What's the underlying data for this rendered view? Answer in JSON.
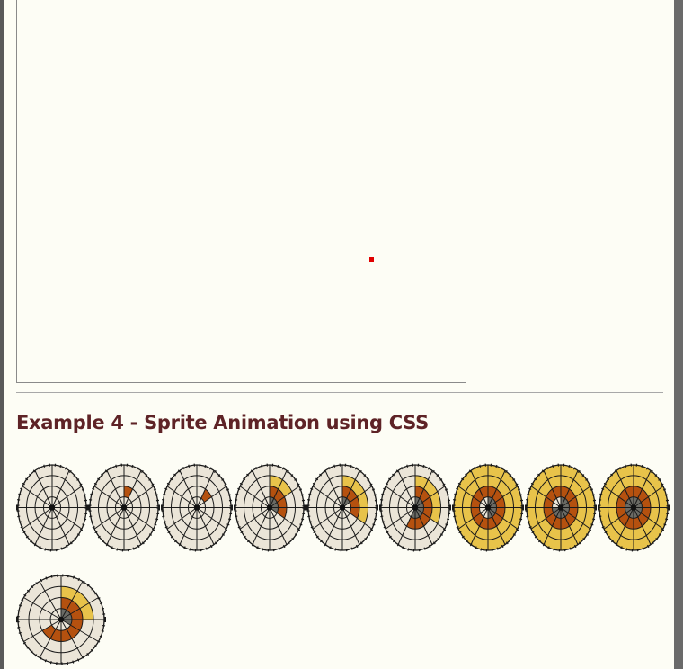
{
  "section": {
    "heading": "Example 4 - Sprite Animation using CSS"
  },
  "colors": {
    "page_background": "#fdfdf5",
    "heading": "#5e2326",
    "dot": "#e00000",
    "disc_base": "#ebe5d8",
    "fill_yellow": "#e8c34a",
    "fill_orange": "#b5510f",
    "fill_gray": "#6b6b65"
  },
  "sprite_frames": [
    {
      "ring_fill": [
        [],
        [],
        [],
        []
      ]
    },
    {
      "ring_fill": [
        [],
        [],
        [
          0
        ],
        []
      ]
    },
    {
      "ring_fill": [
        [],
        [],
        [
          1
        ],
        []
      ]
    },
    {
      "ring_fill": [
        [],
        [
          0,
          1
        ],
        [
          0,
          1,
          2,
          3
        ],
        [
          0,
          1,
          2,
          3
        ]
      ]
    },
    {
      "ring_fill": [
        [],
        [
          0,
          1,
          2,
          3
        ],
        [
          0,
          1,
          2,
          3
        ],
        [
          0,
          1
        ]
      ]
    },
    {
      "ring_fill": [
        [],
        [
          0,
          1,
          2,
          3
        ],
        [
          0,
          1,
          2,
          3,
          4,
          5,
          6
        ],
        [
          0,
          1,
          2,
          3,
          4,
          5,
          6
        ]
      ]
    },
    {
      "ring_fill": [
        [
          0,
          1,
          2,
          3,
          4,
          5,
          6,
          7,
          8,
          9,
          10,
          11
        ],
        [
          0,
          1,
          2,
          3,
          4,
          5,
          6,
          7,
          8,
          9,
          10,
          11
        ],
        [
          0,
          1,
          2,
          3,
          4,
          5,
          6,
          7,
          8,
          9,
          10,
          11
        ],
        [
          0,
          1,
          2,
          3,
          4,
          5
        ]
      ]
    },
    {
      "ring_fill": [
        [
          0,
          1,
          2,
          3,
          4,
          5,
          6,
          7,
          8,
          9,
          10,
          11
        ],
        [
          0,
          1,
          2,
          3,
          4,
          5,
          6,
          7,
          8,
          9,
          10,
          11
        ],
        [
          0,
          1,
          2,
          3,
          4,
          5,
          6,
          7,
          8,
          9,
          10,
          11
        ],
        [
          0,
          1,
          2,
          3,
          4,
          5,
          6,
          7,
          8
        ]
      ]
    },
    {
      "ring_fill": [
        [
          0,
          1,
          2,
          3,
          4,
          5,
          6,
          7,
          8,
          9,
          10,
          11
        ],
        [
          0,
          1,
          2,
          3,
          4,
          5,
          6,
          7,
          8,
          9,
          10,
          11
        ],
        [
          0,
          1,
          2,
          3,
          4,
          5,
          6,
          7,
          8,
          9,
          10,
          11
        ],
        [
          0,
          1,
          2,
          3,
          4,
          5,
          6,
          7,
          8,
          9,
          10,
          11
        ]
      ]
    },
    {
      "ring_fill": [
        [],
        [
          0,
          1,
          2
        ],
        [
          0,
          1,
          2,
          3,
          4,
          5,
          6,
          7
        ],
        [
          0,
          1,
          2,
          3
        ]
      ]
    }
  ]
}
